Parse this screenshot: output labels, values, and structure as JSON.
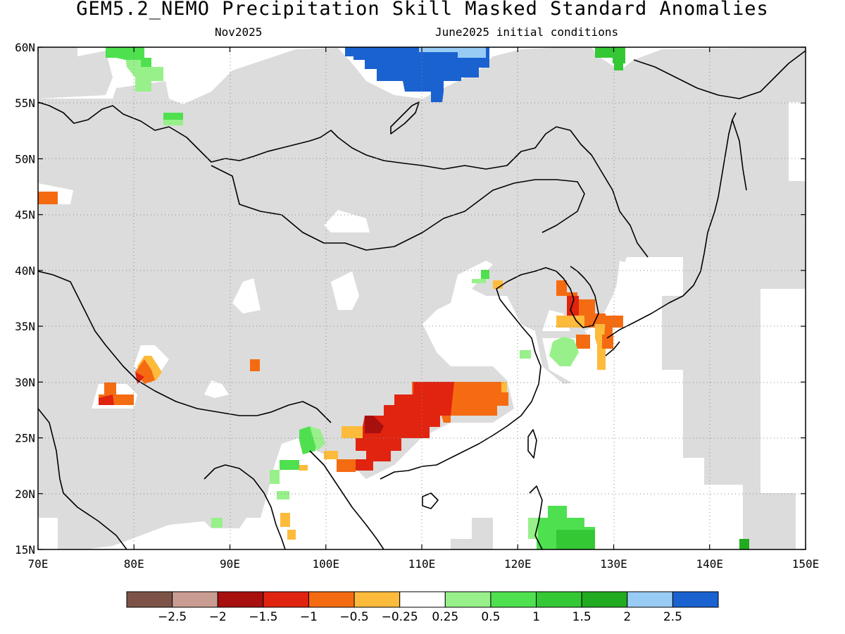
{
  "title": "GEM5.2_NEMO Precipitation Skill Masked Standard Anomalies",
  "subtitle_left": "Nov2025",
  "subtitle_right": "June2025 initial conditions",
  "map": {
    "lon_range": [
      70,
      150
    ],
    "lat_range": [
      15,
      60
    ],
    "lon_ticks": [
      "70E",
      "80E",
      "90E",
      "100E",
      "110E",
      "120E",
      "130E",
      "140E",
      "150E"
    ],
    "lat_ticks": [
      "15N",
      "20N",
      "25N",
      "30N",
      "35N",
      "40N",
      "45N",
      "50N",
      "55N",
      "60N"
    ],
    "masked_color": "#dcdcdc",
    "land_outline_color": "#000000",
    "grid": "dotted"
  },
  "colorbar": {
    "colors": [
      "#7d5348",
      "#c99c91",
      "#a80f0f",
      "#e02410",
      "#f56b12",
      "#fdbb3c",
      "#ffffff",
      "#98f08a",
      "#4fe04f",
      "#35c835",
      "#20ab20",
      "#99ccf5",
      "#1a62d0"
    ],
    "labels": [
      "−2.5",
      "−2",
      "−1.5",
      "−1",
      "−0.5",
      "−0.25",
      "0.25",
      "0.5",
      "1",
      "1.5",
      "2",
      "2.5"
    ]
  },
  "anomaly_regions": [
    {
      "name": "east-siberia-positive",
      "lon": [
        106,
        114
      ],
      "lat": [
        55,
        60
      ],
      "category": "2.5"
    },
    {
      "name": "central-china-negative",
      "lon": [
        104,
        115
      ],
      "lat": [
        22,
        30
      ],
      "category": "-1"
    },
    {
      "name": "central-china-core",
      "lon": [
        104,
        106
      ],
      "lat": [
        26,
        27
      ],
      "category": "-1.5"
    },
    {
      "name": "korea-japan-mixed",
      "lon": [
        124,
        131
      ],
      "lat": [
        31,
        39
      ],
      "category": "-0.5"
    },
    {
      "name": "philippine-sea-positive",
      "lon": [
        122,
        129
      ],
      "lat": [
        15,
        19
      ],
      "category": "1"
    },
    {
      "name": "west-siberia-positive",
      "lon": [
        79,
        86
      ],
      "lat": [
        56,
        60
      ],
      "category": "0.5"
    },
    {
      "name": "himalaya-negative",
      "lon": [
        77,
        84
      ],
      "lat": [
        28,
        32
      ],
      "category": "-1"
    },
    {
      "name": "kazakhstan-negative",
      "lon": [
        70,
        73
      ],
      "lat": [
        46,
        47
      ],
      "category": "-1"
    }
  ]
}
